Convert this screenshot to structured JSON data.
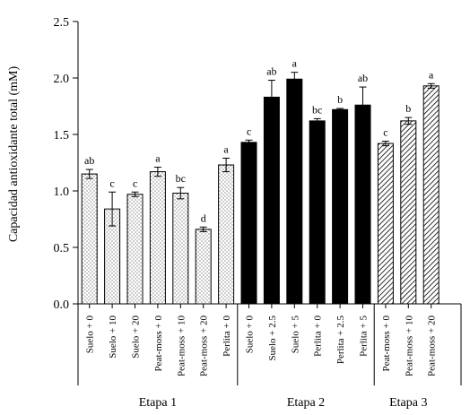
{
  "chart_data": {
    "type": "bar",
    "ylabel": "Capacidad antioxidante total (mM)",
    "ylim": [
      0,
      2.5
    ],
    "yticks": [
      "0.0",
      "0.5",
      "1.0",
      "1.5",
      "2.0",
      "2.5"
    ],
    "grid": false,
    "legend": "none",
    "groups": [
      {
        "name": "Etapa 1",
        "pattern": "dots",
        "bars": [
          {
            "label": "Suelo + 0",
            "value": 1.15,
            "error": 0.04,
            "letter": "ab"
          },
          {
            "label": "Suelo + 10",
            "value": 0.84,
            "error": 0.15,
            "letter": "c"
          },
          {
            "label": "Suelo + 20",
            "value": 0.97,
            "error": 0.02,
            "letter": "c"
          },
          {
            "label": "Peat-moss + 0",
            "value": 1.17,
            "error": 0.04,
            "letter": "a"
          },
          {
            "label": "Peat-moss + 10",
            "value": 0.98,
            "error": 0.05,
            "letter": "bc"
          },
          {
            "label": "Peat-moss + 20",
            "value": 0.66,
            "error": 0.02,
            "letter": "d"
          },
          {
            "label": "Perlita + 0",
            "value": 1.23,
            "error": 0.06,
            "letter": "a"
          }
        ]
      },
      {
        "name": "Etapa 2",
        "pattern": "solid",
        "bars": [
          {
            "label": "Suelo + 0",
            "value": 1.43,
            "error": 0.02,
            "letter": "c"
          },
          {
            "label": "Suelo + 2.5",
            "value": 1.83,
            "error": 0.15,
            "letter": "ab"
          },
          {
            "label": "Suelo + 5",
            "value": 1.99,
            "error": 0.06,
            "letter": "a"
          },
          {
            "label": "Perlita + 0",
            "value": 1.62,
            "error": 0.02,
            "letter": "bc"
          },
          {
            "label": "Perlita + 2.5",
            "value": 1.72,
            "error": 0.01,
            "letter": "b"
          },
          {
            "label": "Perlita + 5",
            "value": 1.76,
            "error": 0.16,
            "letter": "ab"
          }
        ]
      },
      {
        "name": "Etapa 3",
        "pattern": "hatch",
        "bars": [
          {
            "label": "Peat-moss + 0",
            "value": 1.42,
            "error": 0.02,
            "letter": "c"
          },
          {
            "label": "Peat-moss + 10",
            "value": 1.62,
            "error": 0.03,
            "letter": "b"
          },
          {
            "label": "Peat-moss + 20",
            "value": 1.93,
            "error": 0.02,
            "letter": "a"
          }
        ]
      }
    ],
    "colors": {
      "axis": "#000000",
      "solid_fill": "#000000",
      "pattern_fill": "#ffffff"
    }
  }
}
